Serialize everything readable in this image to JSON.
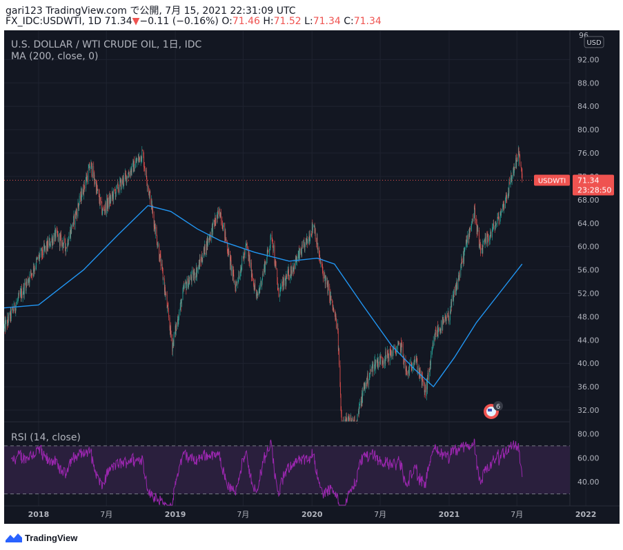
{
  "header": {
    "line1": "gari123 TradingView.com で公開, 7月 15, 2021 22:31:09 UTC",
    "symbol_text": "FX_IDC:USDWTI, 1D 71.34",
    "change_arrow": "▼",
    "change_text": "−0.11 (−0.16%)",
    "o_label": " O:",
    "o_value": "71.46",
    "h_label": " H:",
    "h_value": "71.52",
    "l_label": " L:",
    "l_value": "71.34",
    "c_label": " C:",
    "c_value": "71.34"
  },
  "legend": {
    "title": "U.S. DOLLAR / WTI CRUDE OIL, 1日, IDC",
    "indicator": "MA (200, close, 0)"
  },
  "price_scale": {
    "currency": "USD",
    "top_cut_label": "96.",
    "ticks": [
      "92.00",
      "88.00",
      "84.00",
      "80.00",
      "76.00",
      "72.00",
      "68.00",
      "64.00",
      "60.00",
      "56.00",
      "52.00",
      "48.00",
      "44.00",
      "40.00",
      "36.00",
      "32.00"
    ],
    "ticks_value": [
      92,
      88,
      84,
      80,
      76,
      72,
      68,
      64,
      60,
      56,
      52,
      48,
      44,
      40,
      36,
      32
    ],
    "last_label_symbol": "USDWTI",
    "last_price": "71.34",
    "countdown": "23:28:50"
  },
  "rsi": {
    "title": "RSI (14, close)",
    "ticks": [
      "80.00",
      "60.00",
      "40.00"
    ],
    "ticks_value": [
      80,
      60,
      40
    ],
    "upper_band": 70,
    "lower band": 30
  },
  "time_axis": {
    "labels": [
      "2018",
      "7月",
      "2019",
      "7月",
      "2020",
      "7月",
      "2021",
      "7月",
      "2022"
    ]
  },
  "event_marker": {
    "count": "6"
  },
  "footer": {
    "brand": "TradingView"
  },
  "colors": {
    "background": "#131722",
    "up": "#26a69a",
    "down": "#ef5350",
    "ma_line": "#2196f3",
    "rsi_line": "#9c27b0",
    "rsi_band_fill": "#2a1f3d",
    "axis_text": "#b2b5be"
  },
  "chart_data": {
    "type": "candlestick",
    "ylim": [
      30,
      97
    ],
    "keypoints": [
      {
        "date": "2017-10-01",
        "price": 46
      },
      {
        "date": "2017-11-01",
        "price": 50
      },
      {
        "date": "2018-01-01",
        "price": 58
      },
      {
        "date": "2018-02-15",
        "price": 62
      },
      {
        "date": "2018-03-15",
        "price": 60
      },
      {
        "date": "2018-05-01",
        "price": 70
      },
      {
        "date": "2018-05-20",
        "price": 74
      },
      {
        "date": "2018-06-20",
        "price": 66
      },
      {
        "date": "2018-08-01",
        "price": 70
      },
      {
        "date": "2018-09-15",
        "price": 74
      },
      {
        "date": "2018-10-05",
        "price": 76
      },
      {
        "date": "2018-11-01",
        "price": 66
      },
      {
        "date": "2018-12-01",
        "price": 54
      },
      {
        "date": "2018-12-24",
        "price": 43
      },
      {
        "date": "2019-01-25",
        "price": 53
      },
      {
        "date": "2019-03-01",
        "price": 56
      },
      {
        "date": "2019-04-15",
        "price": 64
      },
      {
        "date": "2019-05-01",
        "price": 66
      },
      {
        "date": "2019-06-10",
        "price": 53
      },
      {
        "date": "2019-07-10",
        "price": 60
      },
      {
        "date": "2019-08-07",
        "price": 51
      },
      {
        "date": "2019-09-16",
        "price": 62
      },
      {
        "date": "2019-10-03",
        "price": 52
      },
      {
        "date": "2019-11-15",
        "price": 57
      },
      {
        "date": "2019-12-20",
        "price": 61
      },
      {
        "date": "2020-01-06",
        "price": 64
      },
      {
        "date": "2020-01-20",
        "price": 58
      },
      {
        "date": "2020-02-20",
        "price": 51
      },
      {
        "date": "2020-03-09",
        "price": 46
      },
      {
        "date": "2020-03-20",
        "price": 30
      },
      {
        "date": "2020-04-28",
        "price": 30
      },
      {
        "date": "2020-05-20",
        "price": 36
      },
      {
        "date": "2020-06-15",
        "price": 40
      },
      {
        "date": "2020-07-15",
        "price": 41
      },
      {
        "date": "2020-08-26",
        "price": 43
      },
      {
        "date": "2020-09-10",
        "price": 38
      },
      {
        "date": "2020-10-01",
        "price": 41
      },
      {
        "date": "2020-10-30",
        "price": 35
      },
      {
        "date": "2020-11-25",
        "price": 45
      },
      {
        "date": "2020-12-31",
        "price": 48
      },
      {
        "date": "2021-01-20",
        "price": 53
      },
      {
        "date": "2021-02-25",
        "price": 63
      },
      {
        "date": "2021-03-10",
        "price": 66
      },
      {
        "date": "2021-03-25",
        "price": 59
      },
      {
        "date": "2021-04-20",
        "price": 62
      },
      {
        "date": "2021-05-15",
        "price": 65
      },
      {
        "date": "2021-06-05",
        "price": 69
      },
      {
        "date": "2021-06-30",
        "price": 75
      },
      {
        "date": "2021-07-06",
        "price": 76
      },
      {
        "date": "2021-07-15",
        "price": 71.34
      }
    ],
    "ma200": [
      {
        "date": "2017-10-01",
        "price": 49.5
      },
      {
        "date": "2018-01-01",
        "price": 50
      },
      {
        "date": "2018-05-01",
        "price": 56
      },
      {
        "date": "2018-08-01",
        "price": 62
      },
      {
        "date": "2018-10-20",
        "price": 67
      },
      {
        "date": "2018-12-20",
        "price": 66
      },
      {
        "date": "2019-03-01",
        "price": 63
      },
      {
        "date": "2019-05-01",
        "price": 61
      },
      {
        "date": "2019-08-01",
        "price": 59
      },
      {
        "date": "2019-11-01",
        "price": 57.5
      },
      {
        "date": "2020-01-15",
        "price": 58
      },
      {
        "date": "2020-03-01",
        "price": 57
      },
      {
        "date": "2020-05-15",
        "price": 50
      },
      {
        "date": "2020-08-01",
        "price": 43
      },
      {
        "date": "2020-10-01",
        "price": 39
      },
      {
        "date": "2020-11-20",
        "price": 36
      },
      {
        "date": "2021-01-15",
        "price": 41
      },
      {
        "date": "2021-03-15",
        "price": 47
      },
      {
        "date": "2021-05-15",
        "price": 52
      },
      {
        "date": "2021-07-15",
        "price": 57
      }
    ]
  }
}
